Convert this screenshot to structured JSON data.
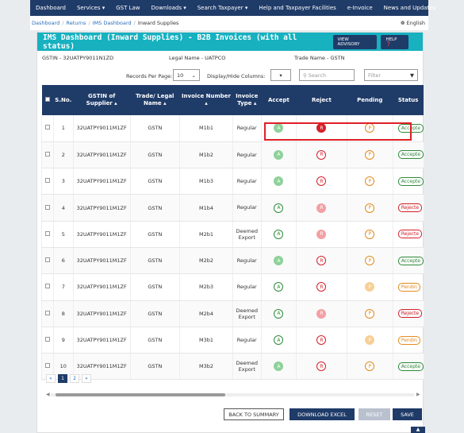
{
  "nav": {
    "items": [
      "Dashboard",
      "Services ▾",
      "GST Law",
      "Downloads ▾",
      "Search Taxpayer ▾",
      "Help and Taxpayer Facilities",
      "e-Invoice",
      "News and Updates"
    ]
  },
  "breadcrumb": {
    "items": [
      "Dashboard",
      "Returns",
      "IMS Dashboard"
    ],
    "current": "Inward Supplies",
    "language": "❁ English"
  },
  "panel": {
    "title": "IMS Dashboard (Inward Supplies) - B2B Invoices (with all status)",
    "view_advisory": "VIEW ADVISORY",
    "help": "HELP ❓"
  },
  "info": {
    "gstin": "GSTIN - 32UATPY9011N1ZD",
    "legal_name": "Legal Name - UATPCO",
    "trade_name": "Trade Name - GSTN"
  },
  "controls": {
    "records_label": "Records Per Page:",
    "records_value": "10",
    "display_label": "Display/Hide Columns:",
    "search_placeholder": "Search",
    "filter_placeholder": "Filter"
  },
  "table": {
    "headers": [
      "S.No.",
      "GSTIN of Supplier ▴",
      "Trade/ Legal Name ▴",
      "Invoice Number ▴",
      "Invoice Type ▴",
      "Accept",
      "Reject",
      "Pending",
      "Status"
    ],
    "rows": [
      {
        "sno": "1",
        "gstin": "32UATPY9011M1ZF",
        "name": "GSTN",
        "invoice": "M1b1",
        "type": "Regular",
        "a": "A",
        "r": "R",
        "p": "P",
        "status": "Accepte",
        "accept_style": "f",
        "reject_style": "s",
        "pending_style": "",
        "status_kind": "acc"
      },
      {
        "sno": "2",
        "gstin": "32UATPY9011M1ZF",
        "name": "GSTN",
        "invoice": "M1b2",
        "type": "Regular",
        "a": "A",
        "r": "R",
        "p": "P",
        "status": "Accepte",
        "accept_style": "f",
        "reject_style": "",
        "pending_style": "",
        "status_kind": "acc"
      },
      {
        "sno": "3",
        "gstin": "32UATPY9011M1ZF",
        "name": "GSTN",
        "invoice": "M1b3",
        "type": "Regular",
        "a": "A",
        "r": "R",
        "p": "P",
        "status": "Accepte",
        "accept_style": "f",
        "reject_style": "",
        "pending_style": "",
        "status_kind": "acc"
      },
      {
        "sno": "4",
        "gstin": "32UATPY9011M1ZF",
        "name": "GSTN",
        "invoice": "M1b4",
        "type": "Regular",
        "a": "A",
        "r": "R",
        "p": "P",
        "status": "Rejecte",
        "accept_style": "",
        "reject_style": "f",
        "pending_style": "",
        "status_kind": "rej"
      },
      {
        "sno": "5",
        "gstin": "32UATPY9011M1ZF",
        "name": "GSTN",
        "invoice": "M2b1",
        "type": "Deemed Export",
        "a": "A",
        "r": "R",
        "p": "P",
        "status": "Rejecte",
        "accept_style": "",
        "reject_style": "f",
        "pending_style": "",
        "status_kind": "rej"
      },
      {
        "sno": "6",
        "gstin": "32UATPY9011M1ZF",
        "name": "GSTN",
        "invoice": "M2b2",
        "type": "Regular",
        "a": "A",
        "r": "R",
        "p": "P",
        "status": "Accepte",
        "accept_style": "f",
        "reject_style": "",
        "pending_style": "",
        "status_kind": "acc"
      },
      {
        "sno": "7",
        "gstin": "32UATPY9011M1ZF",
        "name": "GSTN",
        "invoice": "M2b3",
        "type": "Regular",
        "a": "A",
        "r": "R",
        "p": "P",
        "status": "Pendin",
        "accept_style": "",
        "reject_style": "",
        "pending_style": "f",
        "status_kind": "pen"
      },
      {
        "sno": "8",
        "gstin": "32UATPY9011M1ZF",
        "name": "GSTN",
        "invoice": "M2b4",
        "type": "Deemed Export",
        "a": "A",
        "r": "R",
        "p": "P",
        "status": "Rejecte",
        "accept_style": "",
        "reject_style": "f",
        "pending_style": "",
        "status_kind": "rej"
      },
      {
        "sno": "9",
        "gstin": "32UATPY9011M1ZF",
        "name": "GSTN",
        "invoice": "M3b1",
        "type": "Regular",
        "a": "A",
        "r": "R",
        "p": "P",
        "status": "Pendin",
        "accept_style": "",
        "reject_style": "",
        "pending_style": "f",
        "status_kind": "pen"
      },
      {
        "sno": "10",
        "gstin": "32UATPY9011M1ZF",
        "name": "GSTN",
        "invoice": "M3b2",
        "type": "Deemed Export",
        "a": "A",
        "r": "R",
        "p": "P",
        "status": "Accepte",
        "accept_style": "f",
        "reject_style": "",
        "pending_style": "",
        "status_kind": "acc"
      }
    ]
  },
  "pager": {
    "prev": "«",
    "pages": [
      "1",
      "2"
    ],
    "next": "»"
  },
  "actions": {
    "back": "BACK TO SUMMARY",
    "download": "DOWNLOAD EXCEL",
    "reset": "RESET",
    "save": "SAVE"
  }
}
